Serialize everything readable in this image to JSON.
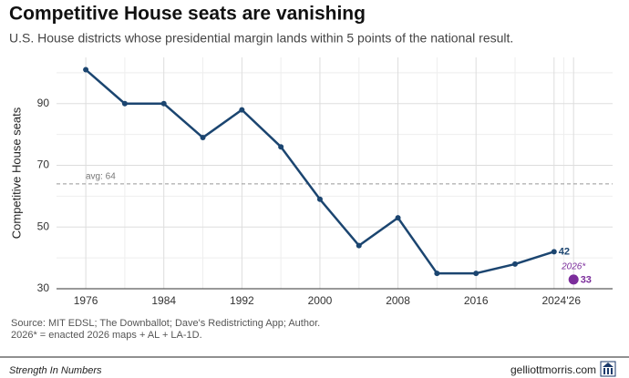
{
  "chart_data": {
    "type": "line",
    "title": "Competitive House seats are vanishing",
    "subtitle": "U.S. House districts whose presidential margin lands within 5 points of the national result.",
    "y_label": "Competitive House seats",
    "x": [
      1976,
      1980,
      1984,
      1988,
      1992,
      1996,
      2000,
      2004,
      2008,
      2012,
      2016,
      2020,
      2024
    ],
    "series": [
      {
        "name": "Competitive House seats",
        "color": "#1b4570",
        "values": [
          101,
          90,
          90,
          79,
          88,
          76,
          59,
          44,
          53,
          35,
          35,
          38,
          42
        ],
        "label_last": true
      },
      {
        "name": "2026*",
        "color": "#7b2d9b",
        "x": [
          2026
        ],
        "values": [
          33
        ],
        "label_last": true
      }
    ],
    "xlim": [
      1973,
      2030
    ],
    "ylim": [
      30,
      105
    ],
    "xticks": [
      1976,
      1984,
      1992,
      2000,
      2008,
      2016,
      2024,
      {
        "value": 2026,
        "label": "'26"
      }
    ],
    "yticks": [
      30,
      50,
      70,
      90
    ],
    "grid": true,
    "avg_line": {
      "value": 64,
      "label": "avg: 64"
    },
    "source": "Source: MIT EDSL; The Downballot; Dave's Redistricting App; Author.",
    "note": "2026* = enacted 2026 maps + AL + LA-1D.",
    "brand": "Strength In Numbers",
    "site": "gelliottmorris.com"
  }
}
